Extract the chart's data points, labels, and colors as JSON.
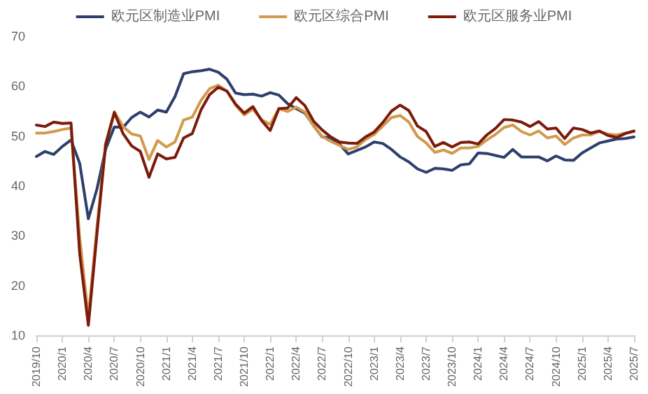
{
  "chart_data": {
    "type": "line",
    "categories": [
      "2019/10",
      null,
      null,
      "2020/1",
      null,
      null,
      "2020/4",
      null,
      null,
      "2020/7",
      null,
      null,
      "2020/10",
      null,
      null,
      "2021/1",
      null,
      null,
      "2021/4",
      null,
      null,
      "2021/7",
      null,
      null,
      "2021/10",
      null,
      null,
      "2022/1",
      null,
      null,
      "2022/4",
      null,
      null,
      "2022/7",
      null,
      null,
      "2022/10",
      null,
      null,
      "2023/1",
      null,
      null,
      "2023/4",
      null,
      null,
      "2023/7",
      null,
      null,
      "2023/10",
      null,
      null,
      "2024/1",
      null,
      null,
      "2024/4",
      null,
      null,
      "2024/7",
      null,
      null,
      "2024/10",
      null,
      null,
      "2025/1",
      null,
      null,
      "2025/4",
      null,
      null,
      "2025/7"
    ],
    "series": [
      {
        "name": "欧元区制造业PMI",
        "color": "#2e3f6e",
        "values": [
          45.9,
          46.9,
          46.3,
          47.9,
          49.2,
          44.5,
          33.4,
          39.4,
          47.4,
          51.8,
          51.7,
          53.7,
          54.8,
          53.8,
          55.2,
          54.8,
          57.9,
          62.5,
          62.9,
          63.1,
          63.4,
          62.8,
          61.4,
          58.6,
          58.3,
          58.4,
          58.0,
          58.7,
          58.2,
          56.5,
          55.5,
          54.6,
          52.1,
          49.8,
          49.6,
          48.4,
          46.4,
          47.1,
          47.8,
          48.8,
          48.5,
          47.3,
          45.8,
          44.8,
          43.4,
          42.7,
          43.5,
          43.4,
          43.1,
          44.2,
          44.4,
          46.6,
          46.5,
          46.1,
          45.7,
          47.3,
          45.8,
          45.8,
          45.8,
          45.0,
          46.0,
          45.2,
          45.1,
          46.6,
          47.6,
          48.6,
          49.0,
          49.4,
          49.5,
          49.8
        ]
      },
      {
        "name": "欧元区综合PMI",
        "color": "#d19a4c",
        "values": [
          50.6,
          50.6,
          50.9,
          51.3,
          51.6,
          29.7,
          13.6,
          31.9,
          48.5,
          54.9,
          51.9,
          50.4,
          50.0,
          45.3,
          49.1,
          47.8,
          48.8,
          53.2,
          53.8,
          57.1,
          59.5,
          60.2,
          59.0,
          56.2,
          54.2,
          55.4,
          53.3,
          52.3,
          55.5,
          54.9,
          55.8,
          54.8,
          52.0,
          49.9,
          48.9,
          48.1,
          47.3,
          47.8,
          49.3,
          50.3,
          52.0,
          53.7,
          54.1,
          52.8,
          49.9,
          48.6,
          46.7,
          47.2,
          46.5,
          47.6,
          47.6,
          47.9,
          49.2,
          50.3,
          51.7,
          52.2,
          50.9,
          50.2,
          51.0,
          49.6,
          50.0,
          48.3,
          49.6,
          50.2,
          50.2,
          50.9,
          50.4,
          50.2,
          50.6,
          50.9
        ]
      },
      {
        "name": "欧元区服务业PMI",
        "color": "#7b1b0b",
        "values": [
          52.2,
          51.9,
          52.8,
          52.5,
          52.6,
          26.4,
          12.0,
          30.5,
          48.3,
          54.7,
          50.5,
          48.0,
          46.9,
          41.7,
          46.4,
          45.4,
          45.7,
          49.6,
          50.5,
          55.2,
          58.3,
          59.8,
          59.0,
          56.4,
          54.6,
          55.9,
          53.1,
          51.1,
          55.5,
          55.6,
          57.7,
          56.1,
          53.0,
          51.2,
          49.8,
          48.8,
          48.6,
          48.5,
          49.8,
          50.8,
          52.7,
          55.0,
          56.2,
          55.1,
          52.0,
          50.9,
          47.9,
          48.7,
          47.8,
          48.7,
          48.8,
          48.4,
          50.2,
          51.5,
          53.3,
          53.2,
          52.8,
          51.9,
          52.9,
          51.4,
          51.6,
          49.5,
          51.6,
          51.3,
          50.6,
          51.0,
          50.1,
          49.7,
          50.5,
          51.0
        ]
      }
    ],
    "ylim": [
      10,
      70
    ],
    "yticks": [
      10,
      20,
      30,
      40,
      50,
      60,
      70
    ],
    "grid": false,
    "legend": "top",
    "marker": "none",
    "line_style": "solid"
  }
}
